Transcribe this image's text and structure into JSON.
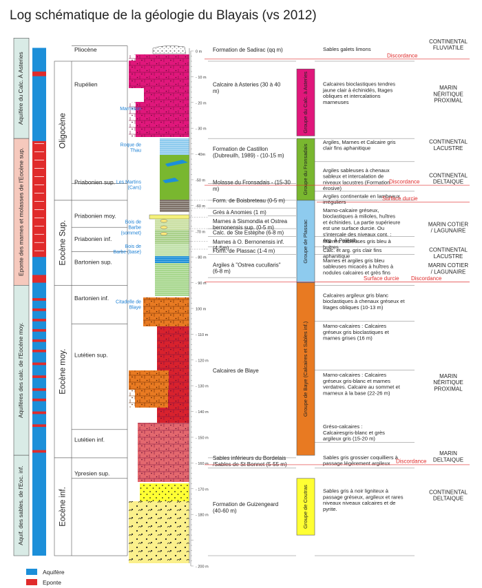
{
  "title": "Log schématique de la géologie du Blayais (vs 2012)",
  "aquifer_columns": [
    {
      "label": "Aquifère du Calc. À Asteries",
      "type": "aquifere",
      "top_m": -5,
      "bottom_m": 34
    },
    {
      "label": "Eponte des marnes et molasses de l'Eocène sup.",
      "type": "eponte",
      "top_m": 34,
      "bottom_m": 91
    },
    {
      "label": "Aquifères des calc. de l'Eocène moy.",
      "type": "aquifere",
      "top_m": 91,
      "bottom_m": 157
    },
    {
      "label": "Aquif. des sables. de l'Eoc. inf.",
      "type": "aquifere",
      "top_m": 157,
      "bottom_m": 196
    }
  ],
  "eras": [
    {
      "label": "Oligocène",
      "top_m": 4,
      "bottom_m": 58
    },
    {
      "label": "Eocène Sup.",
      "top_m": 58,
      "bottom_m": 91
    },
    {
      "label": "Eocène moy.",
      "top_m": 91,
      "bottom_m": 158
    },
    {
      "label": "Eocène inf.",
      "top_m": 158,
      "bottom_m": 196
    }
  ],
  "stages": [
    {
      "label": "Pliocène",
      "depth_m": -0.5
    },
    {
      "label": "Rupélien",
      "depth_m": 13
    },
    {
      "label": "Priabonien sup.",
      "depth_m": 51
    },
    {
      "label": "Priabonien moy.",
      "depth_m": 64
    },
    {
      "label": "Priabonien inf.",
      "depth_m": 73
    },
    {
      "label": "Bartonien sup.",
      "depth_m": 82
    },
    {
      "label": "Bartonien inf.",
      "depth_m": 96
    },
    {
      "label": "Lutétien sup.",
      "depth_m": 118
    },
    {
      "label": "Lutétien inf.",
      "depth_m": 151
    },
    {
      "label": "Ypresien sup.",
      "depth_m": 164
    }
  ],
  "localities": [
    {
      "label": "Marmison",
      "depth_m": 23
    },
    {
      "label": "Roque de Thau",
      "depth_m": 37
    },
    {
      "label": "Les Martins (Cars)",
      "depth_m": 51.5
    },
    {
      "label": "Bois de Barbe (sommet)",
      "depth_m": 67
    },
    {
      "label": "Bois de Barbe (base)",
      "depth_m": 76.5
    },
    {
      "label": "Citadelle de Blaye",
      "depth_m": 98
    }
  ],
  "depth_axis": {
    "label_suffix": " m",
    "ticks": [
      0,
      10,
      20,
      30,
      40,
      50,
      60,
      70,
      80,
      90,
      100,
      110,
      120,
      130,
      140,
      150,
      160,
      170,
      180,
      200
    ],
    "tick_labels": [
      "0 m",
      "- 10 m",
      "- 20 m",
      "- 30 m",
      "- 40m",
      "-50 m",
      "-60 m",
      "-70 m",
      "- 80 m",
      "- 90 m",
      "100 m",
      "- 110 m",
      "- 120 m",
      "- 130 m",
      "- 140 m",
      "- 150 m",
      "- 160 m",
      "- 170 m",
      "- 180 m",
      "- 200 m"
    ]
  },
  "formations": [
    {
      "label": "Formation de Sadirac (qq m)",
      "depth_m": -0.5
    },
    {
      "label": "Calcaire à Asteries (30 à 40 m)",
      "depth_m": 13
    },
    {
      "label": "Formation de Castillon (Dubreuilh, 1989) - (10-15 m)",
      "depth_m": 38
    },
    {
      "label": "Molasse du Fronsadais - (15-30 m)",
      "depth_m": 51
    },
    {
      "label": "Form. de Boisbreteau (0-5 m)",
      "depth_m": 58
    },
    {
      "label": "Grès à Anomies (1 m)",
      "depth_m": 62.5
    },
    {
      "label": "Marnes à Sismondia et Ostrea bernonensis sup. (0-5 m)",
      "depth_m": 66
    },
    {
      "label": "Calc. de Ste Estèphe (6-8 m)",
      "depth_m": 70.5
    },
    {
      "label": "Marnes à O. Bernonensis inf. (4-5m)",
      "depth_m": 74
    },
    {
      "label": "Form. de Plassac (1-4 m)",
      "depth_m": 77.5
    },
    {
      "label": "Argiles à \"Ostrea cucullaris\" (6-8 m)",
      "depth_m": 83
    },
    {
      "label": "Calcaires de Blaye",
      "depth_m": 124
    },
    {
      "label": "Sables inférieurs du Bordelais /Sables de St Bonnet (5-55 m)",
      "depth_m": 158
    },
    {
      "label": "Formation de Guizengeard (40-60 m)",
      "depth_m": 176
    }
  ],
  "groups": [
    {
      "label": "Groupe du Calc. à Asteries",
      "top_m": 7,
      "bottom_m": 33
    },
    {
      "label": "Groupe du Fronsadais",
      "top_m": 34,
      "bottom_m": 58
    },
    {
      "label": "Groupe de Plassac",
      "top_m": 58,
      "bottom_m": 90
    },
    {
      "label": "Groupe de Baye (Calcaires et Sables inf.)",
      "top_m": 90,
      "bottom_m": 157
    },
    {
      "label": "Groupe de Coutras",
      "top_m": 166,
      "bottom_m": 188
    }
  ],
  "descriptions": [
    {
      "text": "Sables galets limons",
      "depth_m": -0.5
    },
    {
      "text": "Calcaires bioclastiques tendres jaune clair à échinidés, litages obliques et intercalations marneuses",
      "depth_m": 13
    },
    {
      "text": "Argiles, Marnes et Calcaire gris clair fins aphanitique",
      "depth_m": 35.5
    },
    {
      "text": "Argiles sableuses à chenaux sableux et intercalation de niveaux lacustres (Formation érosive)",
      "depth_m": 46.5
    },
    {
      "text": "Argiles continentale en lambeaux irréguliers",
      "depth_m": 56.5
    },
    {
      "text": "Marno-calcaire gréseux, bioclastiques à milioles, huîtres et échinides. La partie supérieure est une surface durcie. Ou s'intercale des niveaux cont. : Arg. À Paléoth.",
      "depth_m": 62
    },
    {
      "text": "Marnes sableuses gris bleu à huitres",
      "depth_m": 74
    },
    {
      "text": "Calc. et arg. gris clair fins aphanitique",
      "depth_m": 77.5
    },
    {
      "text": "Marnes et argiles gris bleu sableuses micacés à huîtres à nodules calcaires et grès fins",
      "depth_m": 81.5
    },
    {
      "text": "Calcaires argileux gris blanc bioclastiques à chenaux gréseux et litages obliques (10-13 m)",
      "depth_m": 95
    },
    {
      "text": "Marno-calcaires : Calcaires gréseux gris bioclastiques  et marnes grises (16 m)",
      "depth_m": 107
    },
    {
      "text": "Marno-calcaires : Calcaires gréseux gris-blanc et marnes verdatres. Calcaire au sommet et marneux à la base (22-26 m)",
      "depth_m": 126
    },
    {
      "text": "Gréso-calcaires : Calcairesgris-blanc et grès argileux gris (15-20 m)",
      "depth_m": 146
    },
    {
      "text": "Sables gris grossier coquilliers à passage légèrement argileux",
      "depth_m": 158
    },
    {
      "text": "Sables gris à noir ligniteux à passage gréseux, argileux et rares niveaux niveaux calcaires et de pyrite.",
      "depth_m": 171
    }
  ],
  "surfaces": [
    {
      "label": "Discordance",
      "depth_m": 2.5
    },
    {
      "label": "Discordance",
      "depth_m": 51.5
    },
    {
      "label": "Surface durcie",
      "depth_m": 58
    },
    {
      "label": "Surface durcie",
      "depth_m": 89
    },
    {
      "label": "Discordance",
      "depth_m": 89
    },
    {
      "label": "Discordance",
      "depth_m": 160
    }
  ],
  "environments": [
    {
      "label": "CONTINENTAL FLUVIATILE",
      "depth_m": -3
    },
    {
      "label": "MARIN NÉRITIQUE PROXIMAL",
      "depth_m": 15
    },
    {
      "label": "CONTINENTAL LACUSTRE",
      "depth_m": 36
    },
    {
      "label": "CONTINENTAL DELTAIQUE",
      "depth_m": 49
    },
    {
      "label": "MARIN COTIER / LAGUNAIRE",
      "depth_m": 68
    },
    {
      "label": "CONTINENTAL LACUSTRE",
      "depth_m": 78
    },
    {
      "label": "MARIN COTIER / LAGUNAIRE",
      "depth_m": 84
    },
    {
      "label": "MARIN NÉRITIQUE PROXIMAL",
      "depth_m": 127
    },
    {
      "label": "MARIN DELTAIQUE",
      "depth_m": 157
    },
    {
      "label": "CONTINENTAL DELTAIQUE",
      "depth_m": 172
    }
  ],
  "legend": [
    {
      "label": "Aquifère",
      "color": "#1c8fd9"
    },
    {
      "label": "Eponte",
      "color": "#e02b2b"
    }
  ],
  "colors": {
    "aquifere": "#1c8fd9",
    "eponte": "#e02b2b",
    "calc_asteries": "#e0177b",
    "fronsadais": "#79b72f",
    "plassac": "#8ecbee",
    "blaye_orange": "#e87a22",
    "blaye_red": "#d8222d",
    "blaye_pink": "#e3686e",
    "sables": "#ffff33",
    "guizengeard": "#fbf08c",
    "surface": "#e02b2b",
    "label_blue": "#1a7fd4",
    "col_aquif_bg": "#d9ebe6",
    "col_eponte_bg": "#f6c9bd"
  }
}
